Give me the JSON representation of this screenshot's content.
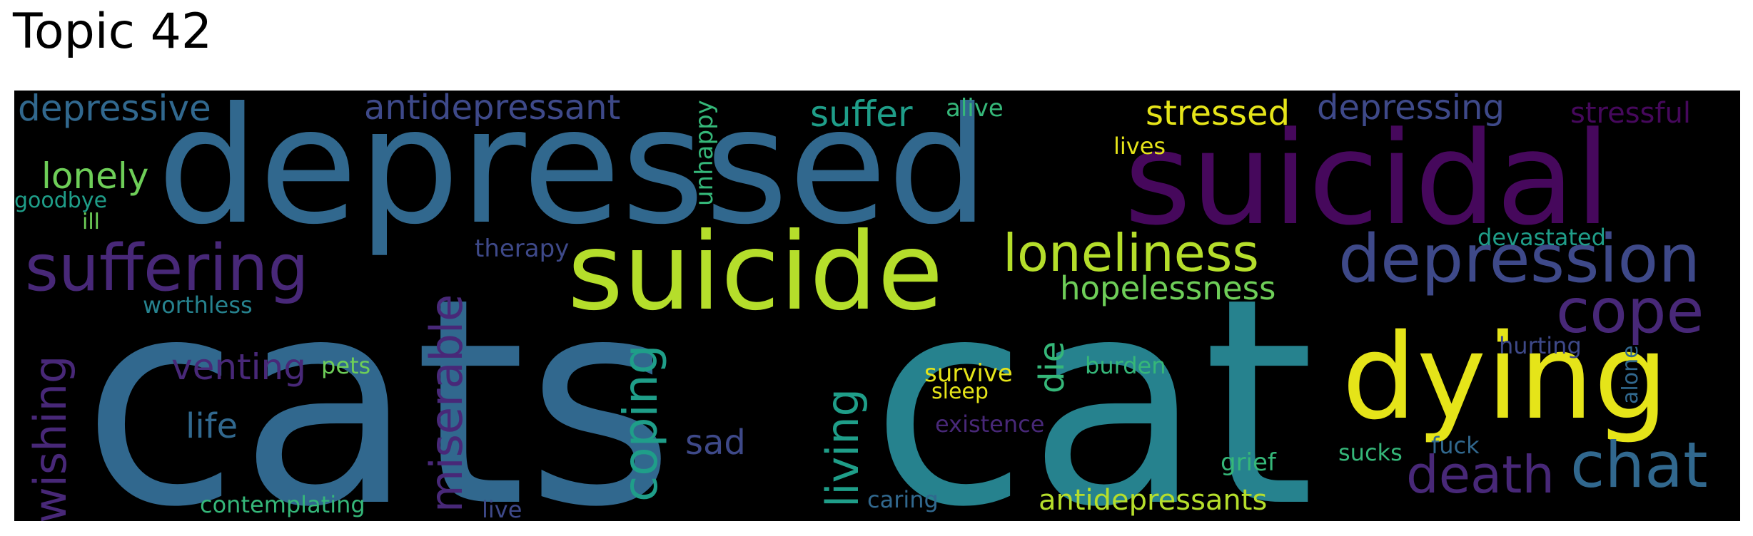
{
  "title": "Topic 42",
  "palette": {
    "purple_dark": "#46085c",
    "purple": "#482878",
    "indigo": "#3e4989",
    "blue": "#31688e",
    "teal": "#26828e",
    "teal_green": "#1f9e89",
    "green": "#35b779",
    "light_green": "#6ece58",
    "lime": "#b5de2b",
    "yellow": "#e5e419"
  },
  "words": [
    "cats",
    "cat",
    "depressed",
    "suicidal",
    "suicide",
    "dying",
    "depression",
    "suffering",
    "loneliness",
    "chat",
    "cope",
    "death",
    "hopelessness",
    "coping",
    "living",
    "miserable",
    "wishing",
    "depressive",
    "antidepressant",
    "depressing",
    "suffer",
    "stressed",
    "stressful",
    "alive",
    "lonely",
    "goodbye",
    "ill",
    "unhappy",
    "lives",
    "therapy",
    "devastated",
    "worthless",
    "venting",
    "pets",
    "life",
    "sad",
    "survive",
    "sleep",
    "die",
    "burden",
    "existence",
    "hurting",
    "alone",
    "grief",
    "sucks",
    "fuck",
    "contemplating",
    "live",
    "caring",
    "antidepressants"
  ]
}
